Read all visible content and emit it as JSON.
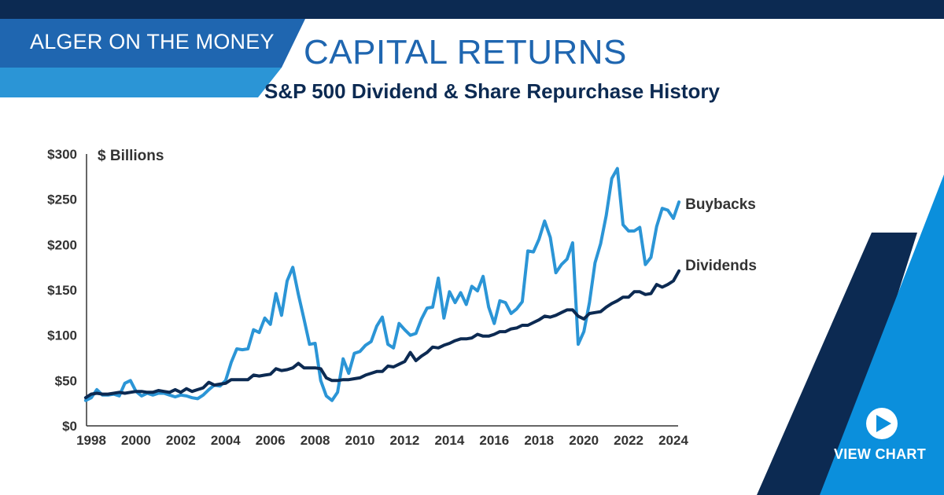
{
  "header": {
    "brand": "ALGER ON THE MONEY",
    "title": "CAPITAL RETURNS",
    "subtitle": "S&P 500 Dividend & Share Repurchase History"
  },
  "cta": {
    "label": "VIEW CHART",
    "icon": "play-circle-icon"
  },
  "colors": {
    "navy": "#0c2a52",
    "blue": "#1f66b0",
    "light_blue": "#2b95d6",
    "bright_blue": "#0b8fdc",
    "axis": "#333333"
  },
  "chart_data": {
    "type": "line",
    "unit_label": "$ Billions",
    "ylim": [
      0,
      300
    ],
    "y_ticks": [
      "$0",
      "$50",
      "$100",
      "$150",
      "$200",
      "$250",
      "$300"
    ],
    "x_ticks": [
      "1998",
      "2000",
      "2002",
      "2004",
      "2006",
      "2008",
      "2010",
      "2012",
      "2014",
      "2016",
      "2018",
      "2020",
      "2022",
      "2024"
    ],
    "xlim": [
      1998,
      2024
    ],
    "grid": false,
    "series": [
      {
        "name": "Buybacks",
        "color": "#2b95d6",
        "x": [
          1997.75,
          1998.0,
          1998.25,
          1998.5,
          1998.75,
          1999.0,
          1999.25,
          1999.5,
          1999.75,
          2000.0,
          2000.25,
          2000.5,
          2000.75,
          2001.0,
          2001.25,
          2001.5,
          2001.75,
          2002.0,
          2002.25,
          2002.5,
          2002.75,
          2003.0,
          2003.25,
          2003.5,
          2003.75,
          2004.0,
          2004.25,
          2004.5,
          2004.75,
          2005.0,
          2005.25,
          2005.5,
          2005.75,
          2006.0,
          2006.25,
          2006.5,
          2006.75,
          2007.0,
          2007.25,
          2007.5,
          2007.75,
          2008.0,
          2008.25,
          2008.5,
          2008.75,
          2009.0,
          2009.25,
          2009.5,
          2009.75,
          2010.0,
          2010.25,
          2010.5,
          2010.75,
          2011.0,
          2011.25,
          2011.5,
          2011.75,
          2012.0,
          2012.25,
          2012.5,
          2012.75,
          2013.0,
          2013.25,
          2013.5,
          2013.75,
          2014.0,
          2014.25,
          2014.5,
          2014.75,
          2015.0,
          2015.25,
          2015.5,
          2015.75,
          2016.0,
          2016.25,
          2016.5,
          2016.75,
          2017.0,
          2017.25,
          2017.5,
          2017.75,
          2018.0,
          2018.25,
          2018.5,
          2018.75,
          2019.0,
          2019.25,
          2019.5,
          2019.75,
          2020.0,
          2020.25,
          2020.5,
          2020.75,
          2021.0,
          2021.25,
          2021.5,
          2021.75,
          2022.0,
          2022.25,
          2022.5,
          2022.75,
          2023.0,
          2023.25,
          2023.5,
          2023.75,
          2024.0,
          2024.25
        ],
        "values": [
          28,
          31,
          40,
          34,
          34,
          35,
          33,
          47,
          50,
          38,
          33,
          36,
          34,
          36,
          36,
          34,
          32,
          34,
          33,
          31,
          30,
          34,
          40,
          45,
          44,
          50,
          70,
          85,
          84,
          85,
          106,
          103,
          119,
          112,
          146,
          122,
          160,
          175,
          145,
          118,
          90,
          91,
          50,
          33,
          28,
          37,
          74,
          58,
          80,
          82,
          89,
          93,
          110,
          120,
          90,
          86,
          113,
          106,
          100,
          102,
          118,
          130,
          131,
          163,
          119,
          148,
          136,
          147,
          134,
          154,
          149,
          165,
          131,
          113,
          138,
          136,
          124,
          129,
          137,
          193,
          192,
          206,
          226,
          208,
          169,
          178,
          184,
          202,
          90,
          104,
          136,
          180,
          201,
          232,
          273,
          284,
          222,
          215,
          215,
          219,
          178,
          186,
          220,
          240,
          238,
          229,
          247
        ]
      },
      {
        "name": "Dividends",
        "color": "#0c2a52",
        "x": [
          1997.75,
          1998.0,
          1998.25,
          1998.5,
          1998.75,
          1999.0,
          1999.25,
          1999.5,
          1999.75,
          2000.0,
          2000.25,
          2000.5,
          2000.75,
          2001.0,
          2001.25,
          2001.5,
          2001.75,
          2002.0,
          2002.25,
          2002.5,
          2002.75,
          2003.0,
          2003.25,
          2003.5,
          2003.75,
          2004.0,
          2004.25,
          2004.5,
          2004.75,
          2005.0,
          2005.25,
          2005.5,
          2005.75,
          2006.0,
          2006.25,
          2006.5,
          2006.75,
          2007.0,
          2007.25,
          2007.5,
          2007.75,
          2008.0,
          2008.25,
          2008.5,
          2008.75,
          2009.0,
          2009.25,
          2009.5,
          2009.75,
          2010.0,
          2010.25,
          2010.5,
          2010.75,
          2011.0,
          2011.25,
          2011.5,
          2011.75,
          2012.0,
          2012.25,
          2012.5,
          2012.75,
          2013.0,
          2013.25,
          2013.5,
          2013.75,
          2014.0,
          2014.25,
          2014.5,
          2014.75,
          2015.0,
          2015.25,
          2015.5,
          2015.75,
          2016.0,
          2016.25,
          2016.5,
          2016.75,
          2017.0,
          2017.25,
          2017.5,
          2017.75,
          2018.0,
          2018.25,
          2018.5,
          2018.75,
          2019.0,
          2019.25,
          2019.5,
          2019.75,
          2020.0,
          2020.25,
          2020.5,
          2020.75,
          2021.0,
          2021.25,
          2021.5,
          2021.75,
          2022.0,
          2022.25,
          2022.5,
          2022.75,
          2023.0,
          2023.25,
          2023.5,
          2023.75,
          2024.0,
          2024.25
        ],
        "values": [
          31,
          35,
          36,
          35,
          35,
          36,
          37,
          36,
          37,
          38,
          38,
          37,
          37,
          39,
          38,
          37,
          40,
          37,
          41,
          38,
          40,
          42,
          48,
          45,
          46,
          47,
          51,
          51,
          51,
          51,
          56,
          55,
          56,
          57,
          63,
          61,
          62,
          64,
          69,
          64,
          64,
          64,
          63,
          53,
          50,
          50,
          51,
          51,
          52,
          53,
          56,
          58,
          60,
          60,
          66,
          65,
          68,
          71,
          81,
          72,
          77,
          81,
          87,
          86,
          89,
          91,
          94,
          96,
          96,
          97,
          101,
          99,
          99,
          101,
          104,
          104,
          107,
          108,
          111,
          111,
          114,
          117,
          121,
          120,
          122,
          125,
          128,
          128,
          121,
          118,
          124,
          125,
          126,
          131,
          135,
          138,
          142,
          142,
          148,
          148,
          145,
          146,
          156,
          153,
          156,
          160,
          171
        ]
      }
    ]
  }
}
